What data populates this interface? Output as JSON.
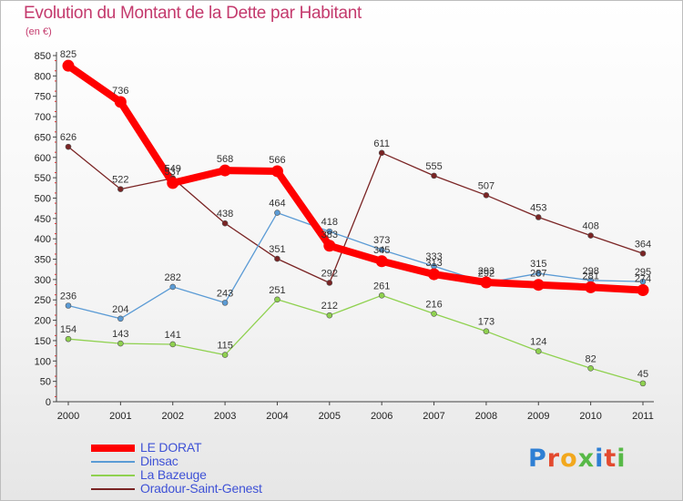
{
  "title": "Evolution du Montant de la Dette par Habitant",
  "unit": "(en €)",
  "logo": "Proxiti",
  "chart_data": {
    "type": "line",
    "title": "Evolution du Montant de la Dette par Habitant",
    "subtitle": "(en €)",
    "x": [
      "2000",
      "2001",
      "2002",
      "2003",
      "2004",
      "2005",
      "2006",
      "2007",
      "2008",
      "2009",
      "2010",
      "2011"
    ],
    "ylim": [
      0,
      850
    ],
    "yticks": [
      0,
      50,
      100,
      150,
      200,
      250,
      300,
      350,
      400,
      450,
      500,
      550,
      600,
      650,
      700,
      750,
      800,
      850
    ],
    "grid": false,
    "legend_position": "bottom-left",
    "series": [
      {
        "name": "LE DORAT",
        "color": "#ff0000",
        "values": [
          825,
          736,
          537,
          568,
          566,
          383,
          345,
          313,
          293,
          287,
          281,
          274
        ]
      },
      {
        "name": "Dinsac",
        "color": "#5b9bd5",
        "values": [
          236,
          204,
          282,
          243,
          464,
          418,
          373,
          333,
          292,
          315,
          298,
          295
        ]
      },
      {
        "name": "La Bazeuge",
        "color": "#8fd14f",
        "values": [
          154,
          143,
          141,
          115,
          251,
          212,
          261,
          216,
          173,
          124,
          82,
          45
        ]
      },
      {
        "name": "Oradour-Saint-Genest",
        "color": "#7a2424",
        "values": [
          626,
          522,
          549,
          438,
          351,
          292,
          611,
          555,
          507,
          453,
          408,
          364
        ]
      }
    ]
  }
}
